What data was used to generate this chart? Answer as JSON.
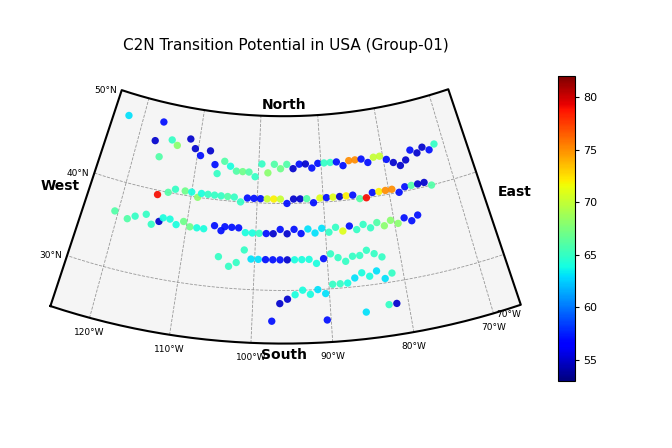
{
  "title": "C2N Transition Potential in USA (Group-01)",
  "cmap": "jet",
  "vmin": 53,
  "vmax": 82,
  "colorbar_ticks": [
    55,
    60,
    65,
    70,
    75,
    80
  ],
  "central_longitude": -96,
  "central_latitude": 39,
  "sp1": 33,
  "sp2": 45,
  "lon_extent": [
    -125,
    -66.5
  ],
  "lat_extent": [
    24,
    50
  ],
  "gridline_lons": [
    -120,
    -110,
    -100,
    -90,
    -80,
    -70
  ],
  "gridline_lats": [
    30,
    40,
    50
  ],
  "direction_labels": {
    "North": {
      "lon": -96,
      "lat": 50.5,
      "ha": "center",
      "va": "bottom"
    },
    "South": {
      "lon": -96,
      "lat": 23.5,
      "ha": "center",
      "va": "top"
    },
    "East": {
      "lon": -64.5,
      "lat": 37,
      "ha": "left",
      "va": "center"
    },
    "West": {
      "lon": -126.5,
      "lat": 38,
      "ha": "right",
      "va": "center"
    }
  },
  "marker_size": 28,
  "points": [
    {
      "lon": -122.5,
      "lat": 47.5,
      "val": 63
    },
    {
      "lon": -116.5,
      "lat": 47.8,
      "val": 57
    },
    {
      "lon": -117.2,
      "lat": 45.5,
      "val": 55
    },
    {
      "lon": -116.0,
      "lat": 43.8,
      "val": 66
    },
    {
      "lon": -114.5,
      "lat": 46.0,
      "val": 65
    },
    {
      "lon": -113.5,
      "lat": 45.5,
      "val": 68
    },
    {
      "lon": -111.5,
      "lat": 46.5,
      "val": 55
    },
    {
      "lon": -110.5,
      "lat": 45.5,
      "val": 55
    },
    {
      "lon": -109.5,
      "lat": 44.8,
      "val": 57
    },
    {
      "lon": -108.0,
      "lat": 45.5,
      "val": 55
    },
    {
      "lon": -107.0,
      "lat": 44.0,
      "val": 57
    },
    {
      "lon": -106.5,
      "lat": 43.0,
      "val": 65
    },
    {
      "lon": -105.5,
      "lat": 44.5,
      "val": 66
    },
    {
      "lon": -104.5,
      "lat": 44.0,
      "val": 64
    },
    {
      "lon": -103.5,
      "lat": 43.5,
      "val": 66
    },
    {
      "lon": -102.5,
      "lat": 43.5,
      "val": 67
    },
    {
      "lon": -101.5,
      "lat": 43.5,
      "val": 66
    },
    {
      "lon": -100.5,
      "lat": 43.0,
      "val": 65
    },
    {
      "lon": -99.5,
      "lat": 44.5,
      "val": 65
    },
    {
      "lon": -98.5,
      "lat": 43.5,
      "val": 68
    },
    {
      "lon": -97.5,
      "lat": 44.5,
      "val": 66
    },
    {
      "lon": -96.5,
      "lat": 44.0,
      "val": 67
    },
    {
      "lon": -95.5,
      "lat": 44.5,
      "val": 66
    },
    {
      "lon": -94.5,
      "lat": 44.0,
      "val": 55
    },
    {
      "lon": -93.5,
      "lat": 44.5,
      "val": 57
    },
    {
      "lon": -92.5,
      "lat": 44.5,
      "val": 55
    },
    {
      "lon": -91.5,
      "lat": 44.0,
      "val": 57
    },
    {
      "lon": -90.5,
      "lat": 44.5,
      "val": 57
    },
    {
      "lon": -89.5,
      "lat": 44.5,
      "val": 65
    },
    {
      "lon": -88.5,
      "lat": 44.5,
      "val": 65
    },
    {
      "lon": -87.5,
      "lat": 44.5,
      "val": 57
    },
    {
      "lon": -86.5,
      "lat": 44.0,
      "val": 57
    },
    {
      "lon": -85.5,
      "lat": 44.5,
      "val": 75
    },
    {
      "lon": -84.5,
      "lat": 44.5,
      "val": 75
    },
    {
      "lon": -83.5,
      "lat": 44.5,
      "val": 57
    },
    {
      "lon": -82.5,
      "lat": 44.0,
      "val": 57
    },
    {
      "lon": -81.5,
      "lat": 44.5,
      "val": 70
    },
    {
      "lon": -80.5,
      "lat": 44.5,
      "val": 70
    },
    {
      "lon": -79.5,
      "lat": 44.0,
      "val": 57
    },
    {
      "lon": -78.5,
      "lat": 43.5,
      "val": 55
    },
    {
      "lon": -77.5,
      "lat": 43.0,
      "val": 55
    },
    {
      "lon": -76.5,
      "lat": 43.5,
      "val": 55
    },
    {
      "lon": -75.5,
      "lat": 44.5,
      "val": 57
    },
    {
      "lon": -74.5,
      "lat": 44.0,
      "val": 55
    },
    {
      "lon": -73.5,
      "lat": 44.5,
      "val": 55
    },
    {
      "lon": -72.5,
      "lat": 44.0,
      "val": 57
    },
    {
      "lon": -71.5,
      "lat": 44.5,
      "val": 65
    },
    {
      "lon": -115.0,
      "lat": 39.5,
      "val": 79
    },
    {
      "lon": -113.5,
      "lat": 40.0,
      "val": 66
    },
    {
      "lon": -112.5,
      "lat": 40.5,
      "val": 65
    },
    {
      "lon": -111.0,
      "lat": 40.5,
      "val": 67
    },
    {
      "lon": -110.0,
      "lat": 40.5,
      "val": 64
    },
    {
      "lon": -109.0,
      "lat": 40.0,
      "val": 68
    },
    {
      "lon": -108.5,
      "lat": 40.5,
      "val": 64
    },
    {
      "lon": -107.5,
      "lat": 40.5,
      "val": 65
    },
    {
      "lon": -106.5,
      "lat": 40.5,
      "val": 65
    },
    {
      "lon": -105.5,
      "lat": 40.5,
      "val": 65
    },
    {
      "lon": -104.5,
      "lat": 40.5,
      "val": 66
    },
    {
      "lon": -103.5,
      "lat": 40.5,
      "val": 65
    },
    {
      "lon": -102.5,
      "lat": 40.0,
      "val": 65
    },
    {
      "lon": -101.5,
      "lat": 40.5,
      "val": 57
    },
    {
      "lon": -100.5,
      "lat": 40.5,
      "val": 57
    },
    {
      "lon": -99.5,
      "lat": 40.5,
      "val": 57
    },
    {
      "lon": -98.5,
      "lat": 40.5,
      "val": 70
    },
    {
      "lon": -97.5,
      "lat": 40.5,
      "val": 72
    },
    {
      "lon": -96.5,
      "lat": 40.5,
      "val": 70
    },
    {
      "lon": -95.5,
      "lat": 40.0,
      "val": 57
    },
    {
      "lon": -94.5,
      "lat": 40.5,
      "val": 55
    },
    {
      "lon": -93.5,
      "lat": 40.5,
      "val": 55
    },
    {
      "lon": -92.5,
      "lat": 40.5,
      "val": 66
    },
    {
      "lon": -91.5,
      "lat": 40.0,
      "val": 57
    },
    {
      "lon": -90.5,
      "lat": 40.5,
      "val": 71
    },
    {
      "lon": -89.5,
      "lat": 40.5,
      "val": 57
    },
    {
      "lon": -88.5,
      "lat": 40.5,
      "val": 71
    },
    {
      "lon": -87.5,
      "lat": 40.5,
      "val": 55
    },
    {
      "lon": -86.5,
      "lat": 40.5,
      "val": 72
    },
    {
      "lon": -85.5,
      "lat": 40.5,
      "val": 57
    },
    {
      "lon": -84.5,
      "lat": 40.0,
      "val": 66
    },
    {
      "lon": -83.5,
      "lat": 40.0,
      "val": 79
    },
    {
      "lon": -82.5,
      "lat": 40.5,
      "val": 57
    },
    {
      "lon": -81.5,
      "lat": 40.5,
      "val": 72
    },
    {
      "lon": -80.5,
      "lat": 40.5,
      "val": 75
    },
    {
      "lon": -79.5,
      "lat": 40.5,
      "val": 75
    },
    {
      "lon": -78.5,
      "lat": 40.0,
      "val": 57
    },
    {
      "lon": -77.5,
      "lat": 40.5,
      "val": 57
    },
    {
      "lon": -76.5,
      "lat": 40.5,
      "val": 66
    },
    {
      "lon": -75.5,
      "lat": 40.5,
      "val": 55
    },
    {
      "lon": -74.5,
      "lat": 40.5,
      "val": 55
    },
    {
      "lon": -73.5,
      "lat": 40.0,
      "val": 66
    },
    {
      "lon": -120.5,
      "lat": 36.5,
      "val": 66
    },
    {
      "lon": -118.5,
      "lat": 36.0,
      "val": 66
    },
    {
      "lon": -117.5,
      "lat": 36.5,
      "val": 65
    },
    {
      "lon": -116.0,
      "lat": 37.0,
      "val": 65
    },
    {
      "lon": -115.0,
      "lat": 36.0,
      "val": 65
    },
    {
      "lon": -114.0,
      "lat": 36.5,
      "val": 55
    },
    {
      "lon": -113.5,
      "lat": 37.0,
      "val": 64
    },
    {
      "lon": -112.5,
      "lat": 37.0,
      "val": 64
    },
    {
      "lon": -111.5,
      "lat": 36.5,
      "val": 64
    },
    {
      "lon": -110.5,
      "lat": 37.0,
      "val": 67
    },
    {
      "lon": -109.5,
      "lat": 36.5,
      "val": 67
    },
    {
      "lon": -108.5,
      "lat": 36.5,
      "val": 64
    },
    {
      "lon": -107.5,
      "lat": 36.5,
      "val": 64
    },
    {
      "lon": -106.0,
      "lat": 37.0,
      "val": 57
    },
    {
      "lon": -105.0,
      "lat": 36.5,
      "val": 57
    },
    {
      "lon": -104.5,
      "lat": 37.0,
      "val": 57
    },
    {
      "lon": -103.5,
      "lat": 37.0,
      "val": 57
    },
    {
      "lon": -102.5,
      "lat": 37.0,
      "val": 57
    },
    {
      "lon": -101.5,
      "lat": 36.5,
      "val": 64
    },
    {
      "lon": -100.5,
      "lat": 36.5,
      "val": 64
    },
    {
      "lon": -99.5,
      "lat": 36.5,
      "val": 65
    },
    {
      "lon": -98.5,
      "lat": 36.5,
      "val": 57
    },
    {
      "lon": -97.5,
      "lat": 36.5,
      "val": 55
    },
    {
      "lon": -96.5,
      "lat": 37.0,
      "val": 57
    },
    {
      "lon": -95.5,
      "lat": 36.5,
      "val": 55
    },
    {
      "lon": -94.5,
      "lat": 37.0,
      "val": 57
    },
    {
      "lon": -93.5,
      "lat": 36.5,
      "val": 57
    },
    {
      "lon": -92.5,
      "lat": 37.0,
      "val": 63
    },
    {
      "lon": -91.5,
      "lat": 36.5,
      "val": 63
    },
    {
      "lon": -90.5,
      "lat": 37.0,
      "val": 63
    },
    {
      "lon": -89.5,
      "lat": 36.5,
      "val": 65
    },
    {
      "lon": -88.5,
      "lat": 37.0,
      "val": 65
    },
    {
      "lon": -87.5,
      "lat": 36.5,
      "val": 71
    },
    {
      "lon": -86.5,
      "lat": 37.0,
      "val": 57
    },
    {
      "lon": -85.5,
      "lat": 36.5,
      "val": 65
    },
    {
      "lon": -84.5,
      "lat": 37.0,
      "val": 65
    },
    {
      "lon": -83.5,
      "lat": 36.5,
      "val": 65
    },
    {
      "lon": -82.5,
      "lat": 37.0,
      "val": 66
    },
    {
      "lon": -81.5,
      "lat": 36.5,
      "val": 68
    },
    {
      "lon": -80.5,
      "lat": 37.0,
      "val": 68
    },
    {
      "lon": -79.5,
      "lat": 36.5,
      "val": 68
    },
    {
      "lon": -78.5,
      "lat": 37.0,
      "val": 57
    },
    {
      "lon": -77.5,
      "lat": 36.5,
      "val": 57
    },
    {
      "lon": -76.5,
      "lat": 37.0,
      "val": 57
    },
    {
      "lon": -105.0,
      "lat": 33.5,
      "val": 65
    },
    {
      "lon": -103.5,
      "lat": 32.5,
      "val": 65
    },
    {
      "lon": -102.5,
      "lat": 33.0,
      "val": 65
    },
    {
      "lon": -101.5,
      "lat": 34.5,
      "val": 65
    },
    {
      "lon": -100.5,
      "lat": 33.5,
      "val": 63
    },
    {
      "lon": -99.5,
      "lat": 33.5,
      "val": 63
    },
    {
      "lon": -98.5,
      "lat": 33.5,
      "val": 57
    },
    {
      "lon": -97.5,
      "lat": 33.5,
      "val": 57
    },
    {
      "lon": -96.5,
      "lat": 33.5,
      "val": 57
    },
    {
      "lon": -95.5,
      "lat": 33.5,
      "val": 55
    },
    {
      "lon": -94.5,
      "lat": 33.5,
      "val": 64
    },
    {
      "lon": -93.5,
      "lat": 33.5,
      "val": 64
    },
    {
      "lon": -92.5,
      "lat": 33.5,
      "val": 64
    },
    {
      "lon": -91.5,
      "lat": 33.0,
      "val": 64
    },
    {
      "lon": -90.5,
      "lat": 33.5,
      "val": 57
    },
    {
      "lon": -89.5,
      "lat": 34.0,
      "val": 65
    },
    {
      "lon": -88.5,
      "lat": 33.5,
      "val": 65
    },
    {
      "lon": -87.5,
      "lat": 33.0,
      "val": 65
    },
    {
      "lon": -86.5,
      "lat": 33.5,
      "val": 65
    },
    {
      "lon": -85.5,
      "lat": 33.5,
      "val": 65
    },
    {
      "lon": -84.5,
      "lat": 34.0,
      "val": 65
    },
    {
      "lon": -83.5,
      "lat": 33.5,
      "val": 65
    },
    {
      "lon": -82.5,
      "lat": 33.0,
      "val": 65
    },
    {
      "lon": -96.5,
      "lat": 28.5,
      "val": 55
    },
    {
      "lon": -95.5,
      "lat": 29.0,
      "val": 55
    },
    {
      "lon": -94.5,
      "lat": 29.5,
      "val": 64
    },
    {
      "lon": -93.5,
      "lat": 30.0,
      "val": 64
    },
    {
      "lon": -92.5,
      "lat": 29.5,
      "val": 64
    },
    {
      "lon": -91.5,
      "lat": 30.0,
      "val": 63
    },
    {
      "lon": -90.5,
      "lat": 29.5,
      "val": 63
    },
    {
      "lon": -89.5,
      "lat": 30.5,
      "val": 65
    },
    {
      "lon": -88.5,
      "lat": 30.5,
      "val": 65
    },
    {
      "lon": -87.5,
      "lat": 30.5,
      "val": 64
    },
    {
      "lon": -86.5,
      "lat": 31.0,
      "val": 63
    },
    {
      "lon": -85.5,
      "lat": 31.5,
      "val": 64
    },
    {
      "lon": -84.5,
      "lat": 31.0,
      "val": 64
    },
    {
      "lon": -83.5,
      "lat": 31.5,
      "val": 63
    },
    {
      "lon": -82.5,
      "lat": 30.5,
      "val": 63
    },
    {
      "lon": -81.5,
      "lat": 31.0,
      "val": 65
    },
    {
      "lon": -97.5,
      "lat": 26.5,
      "val": 57
    },
    {
      "lon": -90.5,
      "lat": 26.5,
      "val": 57
    },
    {
      "lon": -85.5,
      "lat": 27.0,
      "val": 63
    },
    {
      "lon": -82.5,
      "lat": 27.5,
      "val": 65
    },
    {
      "lon": -81.5,
      "lat": 27.5,
      "val": 55
    }
  ]
}
